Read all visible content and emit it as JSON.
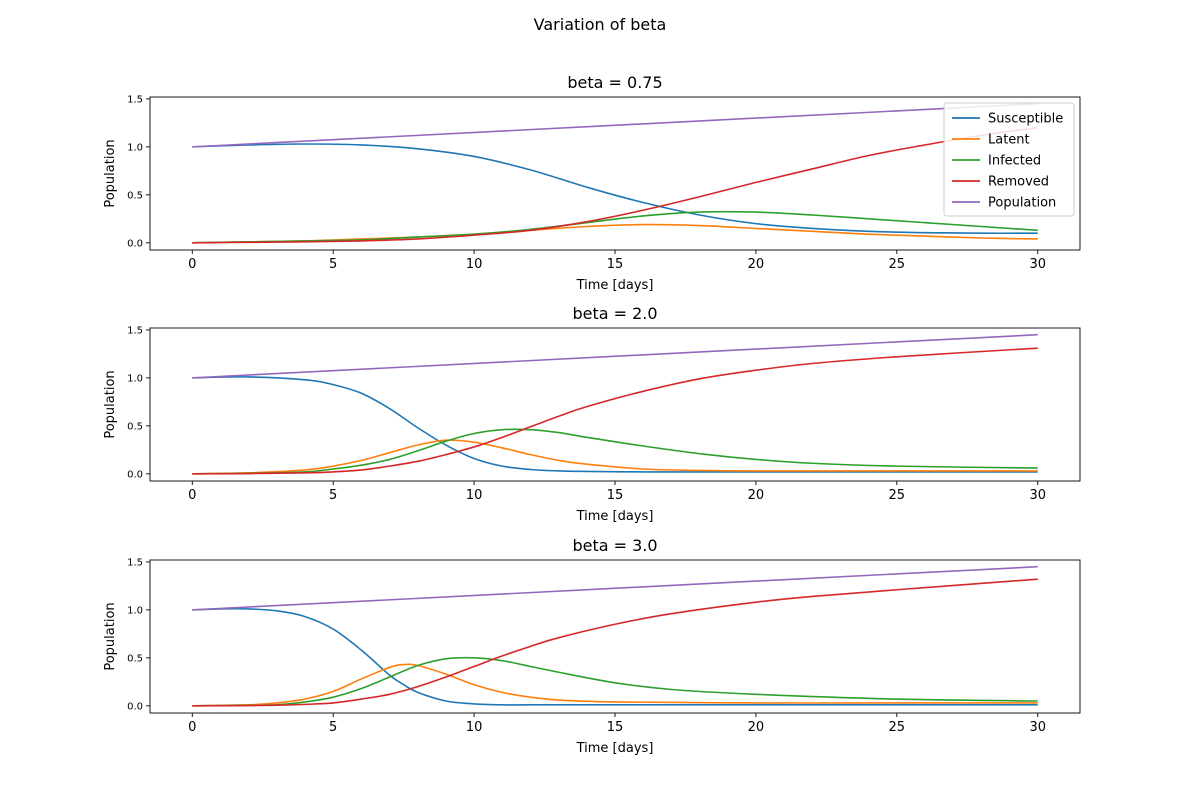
{
  "figure": {
    "title": "Variation of beta"
  },
  "colors": {
    "Susceptible": "#1f77b4",
    "Latent": "#ff7f0e",
    "Infected": "#2ca02c",
    "Removed": "#d62728",
    "Population": "#9467bd"
  },
  "chart_data": [
    {
      "type": "line",
      "title": "beta = 0.75",
      "xlabel": "Time [days]",
      "ylabel": "Population",
      "xlim": [
        -1.5,
        31.5
      ],
      "ylim": [
        -0.075,
        1.52
      ],
      "xticks": [
        0,
        5,
        10,
        15,
        20,
        25,
        30
      ],
      "yticks": [
        0.0,
        0.5,
        1.0,
        1.5
      ],
      "xtick_labels": [
        "0",
        "5",
        "10",
        "15",
        "20",
        "25",
        "30"
      ],
      "ytick_labels": [
        "0.0",
        "0.5",
        "1.0",
        "1.5"
      ],
      "legend": {
        "show": true,
        "placement": "upper-right",
        "entries": [
          "Susceptible",
          "Latent",
          "Infected",
          "Removed",
          "Population"
        ]
      },
      "series": [
        {
          "name": "Susceptible",
          "x": [
            0,
            2,
            4,
            6,
            8,
            10,
            12,
            14,
            16,
            18,
            20,
            22,
            24,
            26,
            28,
            30
          ],
          "y": [
            1.0,
            1.02,
            1.03,
            1.02,
            0.98,
            0.9,
            0.76,
            0.58,
            0.42,
            0.29,
            0.2,
            0.15,
            0.12,
            0.105,
            0.1,
            0.1
          ]
        },
        {
          "name": "Latent",
          "x": [
            0,
            2,
            4,
            6,
            8,
            10,
            12,
            14,
            16,
            18,
            20,
            22,
            24,
            26,
            28,
            30
          ],
          "y": [
            0.0,
            0.01,
            0.02,
            0.04,
            0.06,
            0.09,
            0.13,
            0.17,
            0.19,
            0.18,
            0.15,
            0.12,
            0.09,
            0.07,
            0.05,
            0.04
          ]
        },
        {
          "name": "Infected",
          "x": [
            0,
            2,
            4,
            6,
            8,
            10,
            12,
            14,
            16,
            18,
            20,
            22,
            24,
            26,
            28,
            30
          ],
          "y": [
            0.0,
            0.01,
            0.02,
            0.03,
            0.06,
            0.09,
            0.14,
            0.21,
            0.28,
            0.32,
            0.32,
            0.29,
            0.25,
            0.21,
            0.17,
            0.13
          ]
        },
        {
          "name": "Removed",
          "x": [
            0,
            2,
            4,
            6,
            8,
            10,
            12,
            14,
            16,
            18,
            20,
            22,
            24,
            26,
            28,
            30
          ],
          "y": [
            0.0,
            0.005,
            0.01,
            0.02,
            0.04,
            0.08,
            0.13,
            0.22,
            0.34,
            0.48,
            0.63,
            0.77,
            0.91,
            1.02,
            1.12,
            1.2
          ]
        },
        {
          "name": "Population",
          "x": [
            0,
            30
          ],
          "y": [
            1.0,
            1.45
          ]
        }
      ]
    },
    {
      "type": "line",
      "title": "beta = 2.0",
      "xlabel": "Time [days]",
      "ylabel": "Population",
      "xlim": [
        -1.5,
        31.5
      ],
      "ylim": [
        -0.075,
        1.52
      ],
      "xticks": [
        0,
        5,
        10,
        15,
        20,
        25,
        30
      ],
      "yticks": [
        0.0,
        0.5,
        1.0,
        1.5
      ],
      "xtick_labels": [
        "0",
        "5",
        "10",
        "15",
        "20",
        "25",
        "30"
      ],
      "ytick_labels": [
        "0.0",
        "0.5",
        "1.0",
        "1.5"
      ],
      "legend": {
        "show": false
      },
      "series": [
        {
          "name": "Susceptible",
          "x": [
            0,
            2,
            4,
            5,
            6,
            7,
            8,
            9,
            10,
            11,
            12,
            13,
            14,
            16,
            18,
            20,
            25,
            30
          ],
          "y": [
            1.0,
            1.01,
            0.98,
            0.93,
            0.84,
            0.68,
            0.48,
            0.3,
            0.16,
            0.08,
            0.045,
            0.03,
            0.025,
            0.02,
            0.02,
            0.02,
            0.02,
            0.02
          ]
        },
        {
          "name": "Latent",
          "x": [
            0,
            2,
            4,
            5,
            6,
            7,
            8,
            9,
            10,
            11,
            12,
            13,
            14,
            16,
            18,
            20,
            25,
            30
          ],
          "y": [
            0.0,
            0.01,
            0.04,
            0.08,
            0.14,
            0.22,
            0.3,
            0.35,
            0.33,
            0.27,
            0.2,
            0.14,
            0.1,
            0.05,
            0.035,
            0.03,
            0.03,
            0.03
          ]
        },
        {
          "name": "Infected",
          "x": [
            0,
            2,
            4,
            5,
            6,
            7,
            8,
            9,
            10,
            11,
            12,
            13,
            14,
            16,
            18,
            20,
            22,
            25,
            30
          ],
          "y": [
            0.0,
            0.005,
            0.02,
            0.05,
            0.09,
            0.15,
            0.24,
            0.34,
            0.42,
            0.46,
            0.46,
            0.43,
            0.38,
            0.29,
            0.21,
            0.15,
            0.11,
            0.08,
            0.06
          ]
        },
        {
          "name": "Removed",
          "x": [
            0,
            2,
            4,
            5,
            6,
            7,
            8,
            9,
            10,
            11,
            12,
            13,
            14,
            16,
            18,
            20,
            22,
            25,
            30
          ],
          "y": [
            0.0,
            0.003,
            0.01,
            0.02,
            0.04,
            0.08,
            0.13,
            0.2,
            0.28,
            0.38,
            0.49,
            0.6,
            0.7,
            0.86,
            0.99,
            1.08,
            1.15,
            1.22,
            1.31
          ]
        },
        {
          "name": "Population",
          "x": [
            0,
            30
          ],
          "y": [
            1.0,
            1.45
          ]
        }
      ]
    },
    {
      "type": "line",
      "title": "beta = 3.0",
      "xlabel": "Time [days]",
      "ylabel": "Population",
      "xlim": [
        -1.5,
        31.5
      ],
      "ylim": [
        -0.075,
        1.52
      ],
      "xticks": [
        0,
        5,
        10,
        15,
        20,
        25,
        30
      ],
      "yticks": [
        0.0,
        0.5,
        1.0,
        1.5
      ],
      "xtick_labels": [
        "0",
        "5",
        "10",
        "15",
        "20",
        "25",
        "30"
      ],
      "ytick_labels": [
        "0.0",
        "0.5",
        "1.0",
        "1.5"
      ],
      "legend": {
        "show": false
      },
      "series": [
        {
          "name": "Susceptible",
          "x": [
            0,
            1,
            2,
            3,
            4,
            5,
            6,
            7,
            7.5,
            8,
            9,
            10,
            11,
            12,
            15,
            20,
            25,
            30
          ],
          "y": [
            1.0,
            1.01,
            1.01,
            0.99,
            0.93,
            0.8,
            0.58,
            0.32,
            0.22,
            0.14,
            0.05,
            0.02,
            0.01,
            0.01,
            0.01,
            0.01,
            0.01,
            0.01
          ]
        },
        {
          "name": "Latent",
          "x": [
            0,
            2,
            3,
            4,
            5,
            6,
            7,
            7.5,
            8,
            9,
            10,
            11,
            12,
            13,
            15,
            20,
            25,
            30
          ],
          "y": [
            0.0,
            0.01,
            0.03,
            0.07,
            0.15,
            0.28,
            0.4,
            0.43,
            0.42,
            0.33,
            0.22,
            0.14,
            0.09,
            0.06,
            0.04,
            0.03,
            0.03,
            0.03
          ]
        },
        {
          "name": "Infected",
          "x": [
            0,
            2,
            3,
            4,
            5,
            6,
            7,
            8,
            9,
            10,
            11,
            12,
            13,
            15,
            17,
            20,
            25,
            30
          ],
          "y": [
            0.0,
            0.005,
            0.01,
            0.04,
            0.09,
            0.18,
            0.3,
            0.42,
            0.49,
            0.5,
            0.47,
            0.41,
            0.35,
            0.24,
            0.17,
            0.12,
            0.07,
            0.05
          ]
        },
        {
          "name": "Removed",
          "x": [
            0,
            2,
            3,
            4,
            5,
            6,
            7,
            8,
            9,
            10,
            11,
            12,
            13,
            15,
            17,
            20,
            22,
            25,
            30
          ],
          "y": [
            0.0,
            0.003,
            0.006,
            0.015,
            0.03,
            0.07,
            0.12,
            0.2,
            0.3,
            0.41,
            0.52,
            0.62,
            0.71,
            0.85,
            0.96,
            1.08,
            1.14,
            1.21,
            1.32
          ]
        },
        {
          "name": "Population",
          "x": [
            0,
            30
          ],
          "y": [
            1.0,
            1.45
          ]
        }
      ]
    }
  ]
}
